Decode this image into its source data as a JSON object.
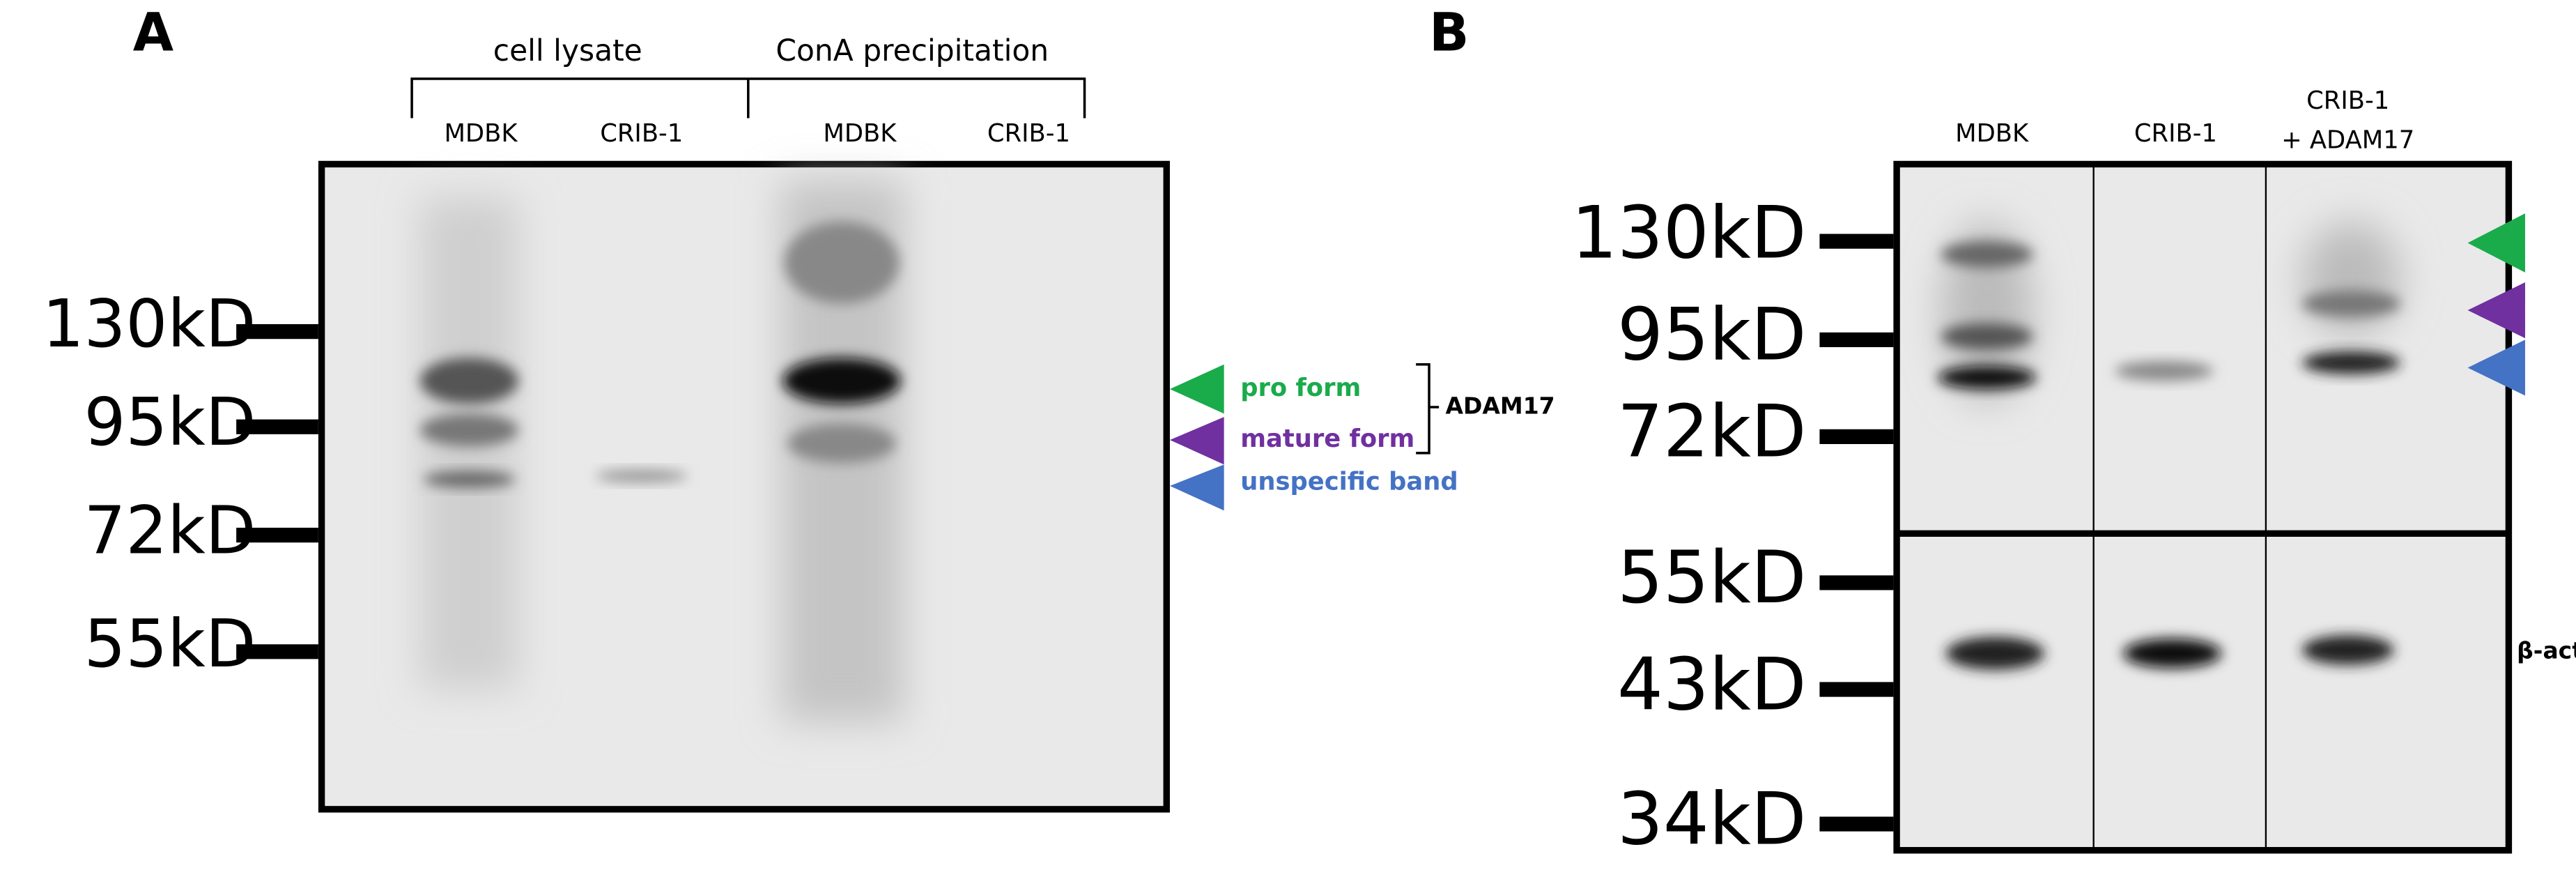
{
  "panel_a": {
    "label": "A",
    "groups": [
      "cell lysate",
      "ConA precipitation"
    ],
    "lanes": [
      "MDBK",
      "CRIB-1",
      "MDBK",
      "CRIB-1"
    ],
    "markers": [
      "130kD",
      "95kD",
      "72kD",
      "55kD"
    ],
    "annotations": [
      "pro form",
      "mature form",
      "unspecific band"
    ],
    "protein": "ADAM17"
  },
  "panel_b": {
    "label": "B",
    "lanes": [
      "MDBK",
      "CRIB-1",
      "CRIB-1",
      "+ ADAM17"
    ],
    "markers": [
      "130kD",
      "95kD",
      "72kD",
      "55kD",
      "43kD",
      "34kD"
    ],
    "loading_control": "β-actin"
  }
}
